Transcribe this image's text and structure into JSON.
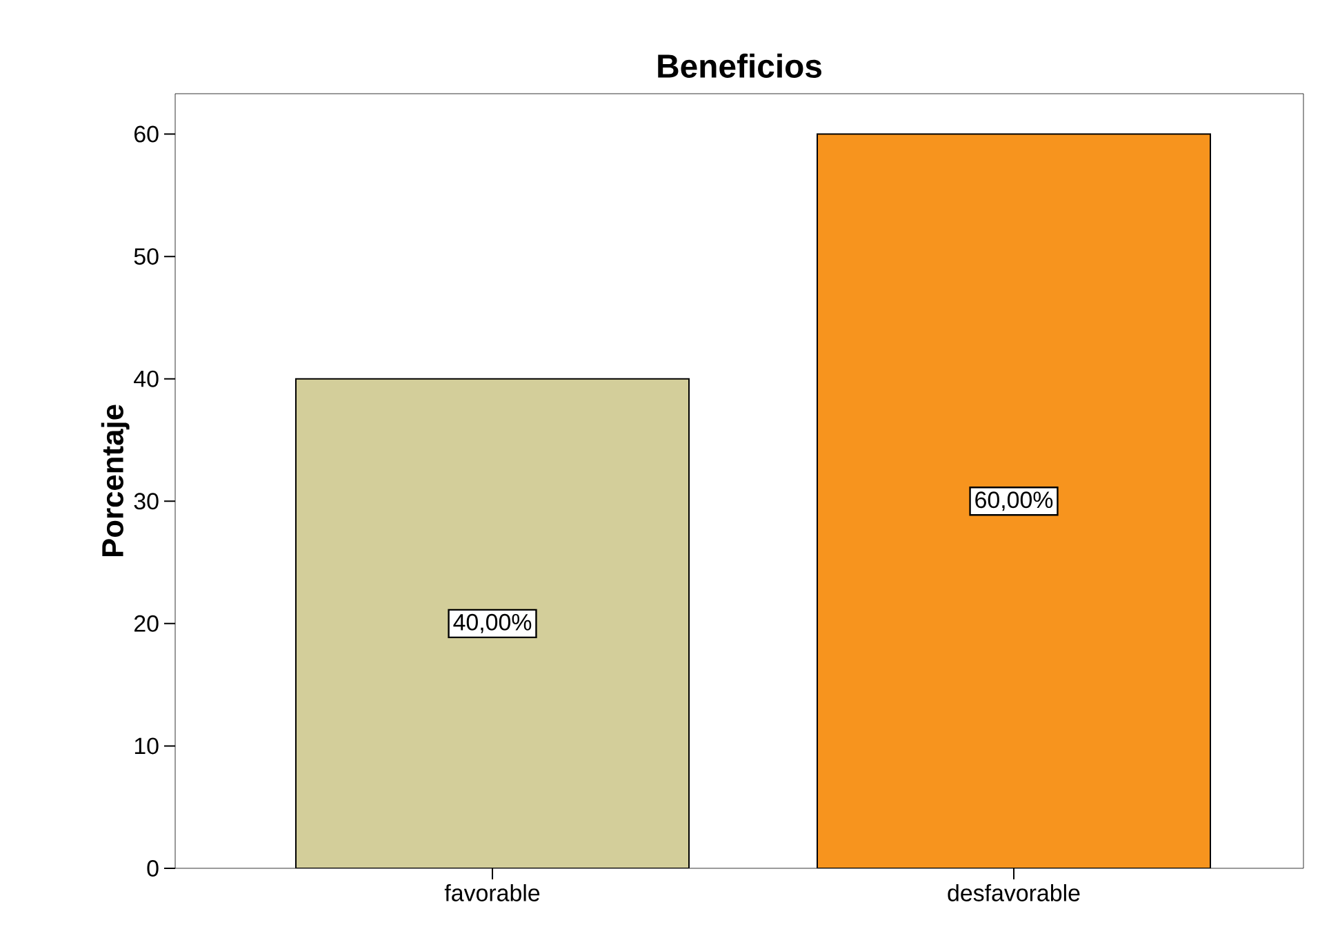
{
  "chart_data": {
    "type": "bar",
    "title": "Beneficios",
    "ylabel": "Porcentaje",
    "categories": [
      "favorable",
      "desfavorable"
    ],
    "values": [
      40,
      60
    ],
    "colors": [
      "#d3ce9a",
      "#f7941e"
    ],
    "value_labels": [
      "40,00%",
      "60,00%"
    ],
    "ylim": [
      0,
      63.3
    ],
    "yticks": [
      0,
      10,
      20,
      30,
      40,
      50,
      60
    ]
  }
}
